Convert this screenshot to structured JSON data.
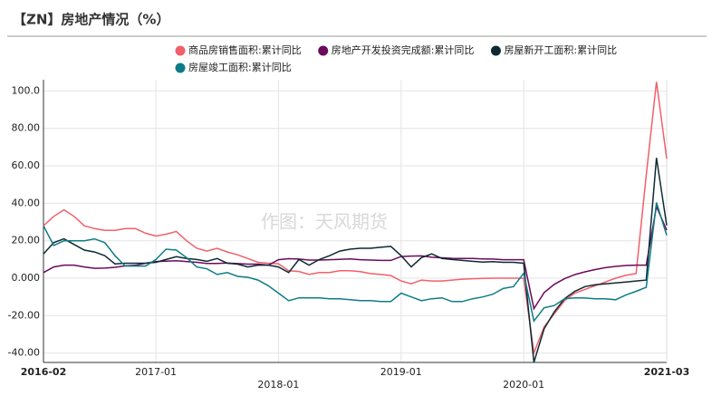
{
  "chart_data": {
    "type": "line",
    "title": "【ZN】房地产情况（%）",
    "watermark": "作图：天风期货",
    "categories": [
      "2016-02",
      null,
      null,
      null,
      null,
      null,
      null,
      null,
      null,
      null,
      null,
      "2017-01",
      null,
      null,
      null,
      null,
      null,
      null,
      null,
      null,
      null,
      null,
      null,
      "2018-01",
      null,
      null,
      null,
      null,
      null,
      null,
      null,
      null,
      null,
      null,
      null,
      "2019-01",
      null,
      null,
      null,
      null,
      null,
      null,
      null,
      null,
      null,
      null,
      null,
      "2020-01",
      null,
      null,
      null,
      null,
      null,
      null,
      null,
      null,
      null,
      null,
      null,
      null,
      null,
      "2021-03"
    ],
    "ylim": [
      -45,
      106
    ],
    "yticks": [
      {
        "value": 100,
        "label": "100.0"
      },
      {
        "value": 80,
        "label": "80.00"
      },
      {
        "value": 60,
        "label": "60.00"
      },
      {
        "value": 40,
        "label": "40.00"
      },
      {
        "value": 20,
        "label": "20.00"
      },
      {
        "value": 0,
        "label": "0.000"
      },
      {
        "value": -20,
        "label": "-20.00"
      },
      {
        "value": -40,
        "label": "-40.00"
      }
    ],
    "grid": true,
    "series": [
      {
        "name": "商品房销售面积:累计同比",
        "color": "#f0606a",
        "values": [
          28,
          33,
          36.5,
          33,
          28,
          26.5,
          25.5,
          25.5,
          26.5,
          26.5,
          24,
          22.5,
          23.5,
          25,
          20,
          16,
          14.5,
          16,
          14,
          12.5,
          10.5,
          8.5,
          8,
          7.7,
          4,
          3.6,
          2,
          3,
          3,
          4,
          4,
          3.5,
          2.5,
          2,
          1.4,
          -1.5,
          -3,
          -1,
          -1.5,
          -1.5,
          -1,
          -0.5,
          -0.3,
          -0.1,
          0,
          0,
          0,
          0,
          -39.9,
          -26,
          -19,
          -12,
          -8,
          -6,
          -4,
          -2,
          0,
          1.5,
          2.5,
          55,
          104.9,
          63.8
        ]
      },
      {
        "name": "房地产开发投资完成额:累计同比",
        "color": "#6b0a5a",
        "values": [
          3,
          6,
          7,
          7,
          6,
          5.3,
          5.4,
          5.8,
          6.6,
          6.9,
          8,
          8.9,
          9.1,
          9.3,
          8.9,
          8.5,
          7.9,
          7.9,
          8.1,
          7.8,
          7.5,
          7.5,
          7,
          9.9,
          10.4,
          10.2,
          9.7,
          9.7,
          9.9,
          10.1,
          10.3,
          9.9,
          9.7,
          9.5,
          9.5,
          11.6,
          11.8,
          11.9,
          11.2,
          10.9,
          10.6,
          10.5,
          10.5,
          10.3,
          10.2,
          9.9,
          9.9,
          9.9,
          -16.3,
          -7.7,
          -3.3,
          -0.3,
          1.9,
          3.4,
          4.6,
          5.6,
          6.3,
          6.8,
          7,
          7,
          38.3,
          25.6
        ]
      },
      {
        "name": "房屋新开工面积:累计同比",
        "color": "#0d2a33",
        "values": [
          13,
          19,
          21,
          18,
          15,
          14,
          12,
          7.6,
          8,
          8,
          8,
          8.5,
          10,
          11.5,
          10.5,
          10,
          9,
          10.5,
          8,
          7.5,
          6,
          7,
          7,
          6,
          3,
          10,
          7,
          10,
          12,
          14.5,
          15.5,
          16,
          16,
          16.5,
          17,
          12,
          6,
          11,
          13,
          10.5,
          10,
          9.5,
          9,
          8.6,
          8.8,
          8.5,
          8.5,
          8,
          -44.9,
          -27,
          -18,
          -11,
          -7,
          -4.5,
          -3.5,
          -3,
          -2.5,
          -2,
          -1.5,
          -1,
          64.3,
          28.2
        ]
      },
      {
        "name": "房屋竣工面积:累计同比",
        "color": "#0e7c86",
        "values": [
          28,
          17.5,
          20,
          20,
          20,
          21,
          19,
          12,
          6.5,
          6.5,
          6.5,
          10,
          15.5,
          15,
          11,
          6,
          5,
          2,
          3,
          1,
          0.5,
          -1,
          -4,
          -8,
          -12,
          -10.5,
          -10.5,
          -10.5,
          -11,
          -11,
          -11.5,
          -12,
          -12,
          -12.5,
          -12.5,
          -8,
          -10,
          -12,
          -11,
          -10.5,
          -12.5,
          -12.5,
          -11,
          -10,
          -8.5,
          -5.5,
          -4.5,
          2.6,
          -22.9,
          -15.8,
          -14.6,
          -11,
          -10.5,
          -10.6,
          -11,
          -11,
          -11.5,
          -9,
          -7,
          -4.9,
          40.4,
          22.9
        ]
      }
    ]
  }
}
